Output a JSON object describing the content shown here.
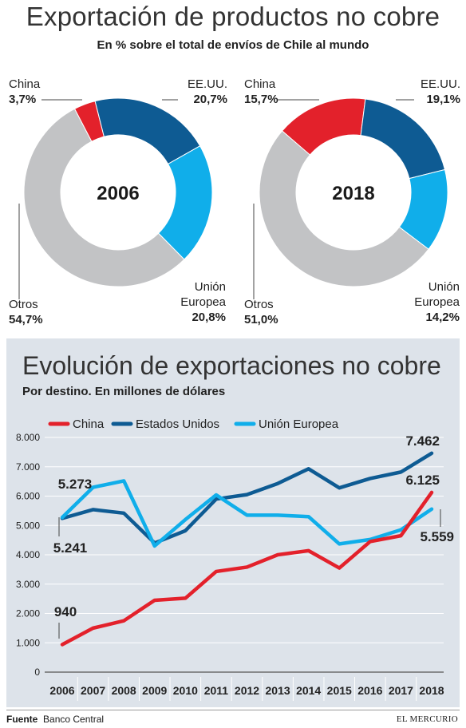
{
  "header": {
    "title": "Exportación de productos no cobre",
    "subtitle": "En % sobre el total de envíos de Chile al mundo"
  },
  "colors": {
    "china": "#e3212b",
    "usa": "#0e5b93",
    "eu": "#10aeea",
    "otros": "#c2c3c5"
  },
  "chart_data": [
    {
      "type": "pie",
      "title": "2006",
      "slices": [
        {
          "label": "China",
          "value": 3.7,
          "display": "3,7%"
        },
        {
          "label": "EE.UU.",
          "value": 20.7,
          "display": "20,7%"
        },
        {
          "label": "Unión Europea",
          "label_line1": "Unión",
          "label_line2": "Europea",
          "value": 20.8,
          "display": "20,8%"
        },
        {
          "label": "Otros",
          "value": 54.7,
          "display": "54,7%"
        }
      ]
    },
    {
      "type": "pie",
      "title": "2018",
      "slices": [
        {
          "label": "China",
          "value": 15.7,
          "display": "15,7%"
        },
        {
          "label": "EE.UU.",
          "value": 19.1,
          "display": "19,1%"
        },
        {
          "label": "Unión Europea",
          "label_line1": "Unión",
          "label_line2": "Europea",
          "value": 14.2,
          "display": "14,2%"
        },
        {
          "label": "Otros",
          "value": 51.0,
          "display": "51,0%"
        }
      ]
    },
    {
      "type": "line",
      "title": "Evolución de exportaciones no cobre",
      "subtitle": "Por destino. En millones de dólares",
      "x": [
        "2006",
        "2007",
        "2008",
        "2009",
        "2010",
        "2011",
        "2012",
        "2013",
        "2014",
        "2015",
        "2016",
        "2017",
        "2018"
      ],
      "yticks": [
        "0",
        "1.000",
        "2.000",
        "3.000",
        "4.000",
        "5.000",
        "6.000",
        "7.000",
        "8.000"
      ],
      "ylim": [
        0,
        8000
      ],
      "grid": true,
      "legend": "top",
      "series": [
        {
          "name": "China",
          "values": [
            940,
            1500,
            1750,
            2450,
            2520,
            3430,
            3580,
            4000,
            4140,
            3550,
            4450,
            4650,
            6125
          ]
        },
        {
          "name": "Estados Unidos",
          "values": [
            5241,
            5540,
            5420,
            4400,
            4820,
            5900,
            6050,
            6430,
            6930,
            6280,
            6600,
            6820,
            7462
          ]
        },
        {
          "name": "Unión Europea",
          "values": [
            5273,
            6300,
            6520,
            4300,
            5200,
            6040,
            5350,
            5350,
            5300,
            4370,
            4520,
            4850,
            5559
          ]
        }
      ],
      "annotations": [
        {
          "series": "China",
          "index": 0,
          "text": "940"
        },
        {
          "series": "China",
          "index": 12,
          "text": "6.125"
        },
        {
          "series": "Estados Unidos",
          "index": 0,
          "text": "5.241"
        },
        {
          "series": "Estados Unidos",
          "index": 12,
          "text": "7.462"
        },
        {
          "series": "Unión Europea",
          "index": 0,
          "text": "5.273"
        },
        {
          "series": "Unión Europea",
          "index": 12,
          "text": "5.559"
        }
      ]
    }
  ],
  "footer": {
    "source_label": "Fuente",
    "source": "Banco Central",
    "brand": "EL MERCURIO"
  }
}
